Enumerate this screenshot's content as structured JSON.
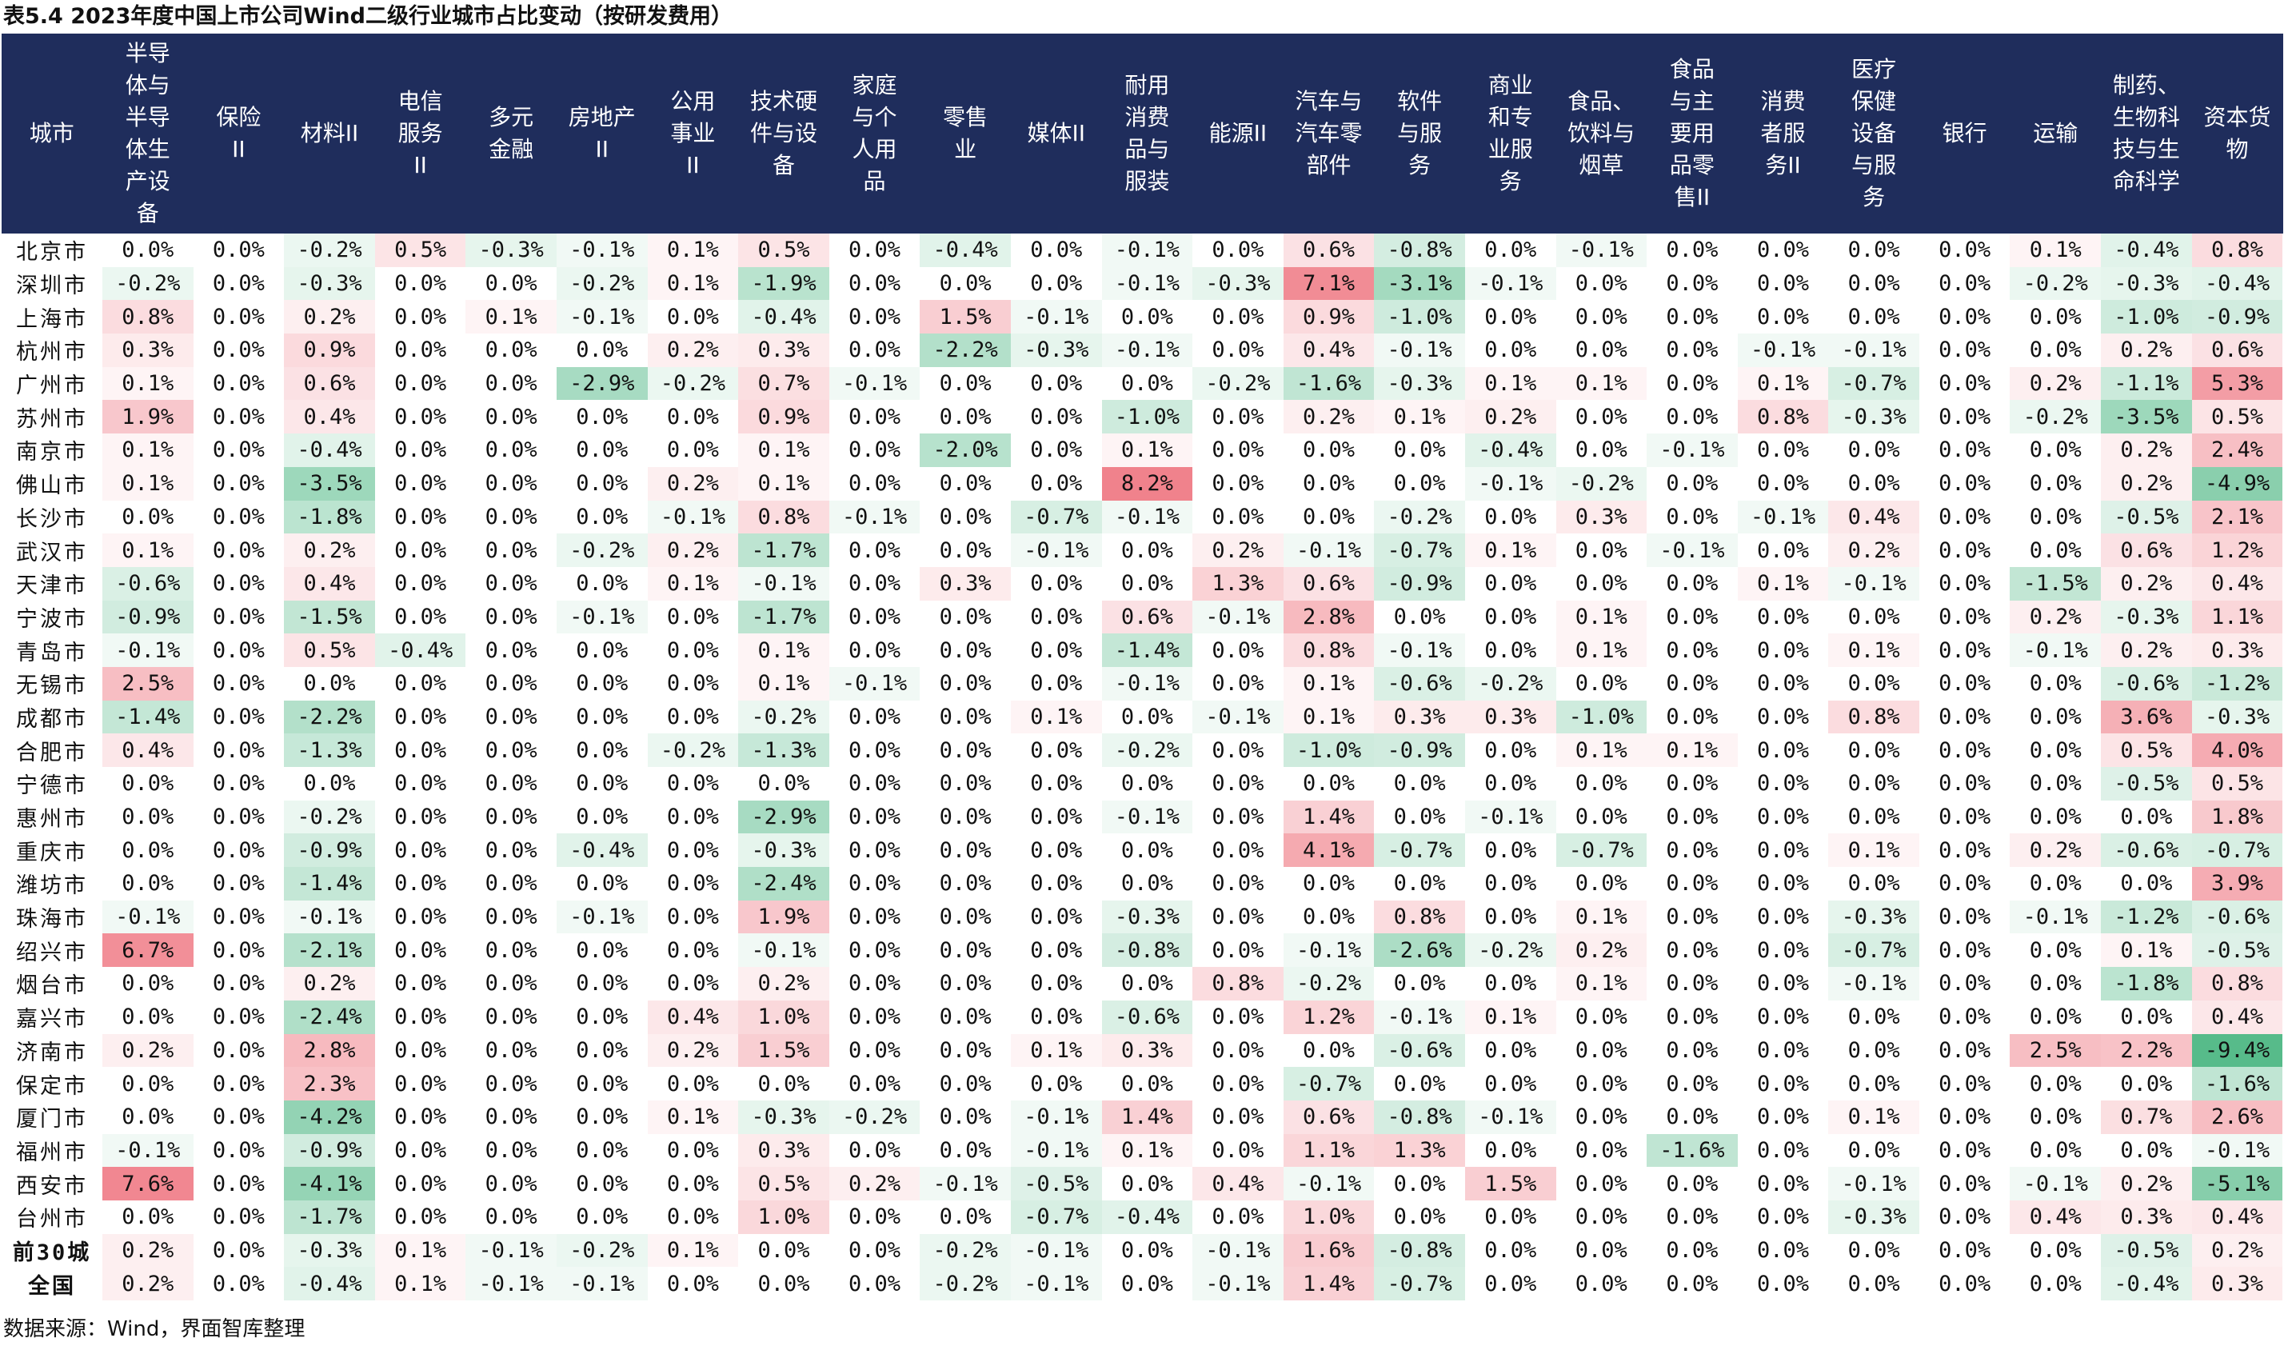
{
  "title": "表5.4 2023年度中国上市公司Wind二级行业城市占比变动（按研发费用）",
  "source": "数据来源：Wind，界面智库整理",
  "colors": {
    "header_bg": "#1f2d5c",
    "header_text": "#ffffff",
    "positive": "#f0828c",
    "negative": "#57bb8a",
    "neutral": "#ffffff"
  },
  "columns": [
    "城市",
    "半导\n体与\n半导\n体生\n产设\n备",
    "保险\nII",
    "材料II",
    "电信\n服务\nII",
    "多元\n金融",
    "房地产\nII",
    "公用\n事业\nII",
    "技术硬\n件与设\n备",
    "家庭\n与个\n人用\n品",
    "零售\n业",
    "媒体II",
    "耐用\n消费\n品与\n服装",
    "能源II",
    "汽车与\n汽车零\n部件",
    "软件\n与服\n务",
    "商业\n和专\n业服\n务",
    "食品、\n饮料与\n烟草",
    "食品\n与主\n要用\n品零\n售II",
    "消费\n者服\n务II",
    "医疗\n保健\n设备\n与服\n务",
    "银行",
    "运输",
    "制药、\n生物科\n技与生\n命科学",
    "资本货\n物"
  ],
  "chart_data": {
    "type": "table",
    "unit": "%",
    "rows": [
      {
        "city": "北京市",
        "values": [
          "0.0%",
          "0.0%",
          "-0.2%",
          "0.5%",
          "-0.3%",
          "-0.1%",
          "0.1%",
          "0.5%",
          "0.0%",
          "-0.4%",
          "0.0%",
          "-0.1%",
          "0.0%",
          "0.6%",
          "-0.8%",
          "0.0%",
          "-0.1%",
          "0.0%",
          "0.0%",
          "0.0%",
          "0.0%",
          "0.1%",
          "-0.4%",
          "0.8%"
        ]
      },
      {
        "city": "深圳市",
        "values": [
          "-0.2%",
          "0.0%",
          "-0.3%",
          "0.0%",
          "0.0%",
          "-0.2%",
          "0.1%",
          "-1.9%",
          "0.0%",
          "0.0%",
          "0.0%",
          "-0.1%",
          "-0.3%",
          "7.1%",
          "-3.1%",
          "-0.1%",
          "0.0%",
          "0.0%",
          "0.0%",
          "0.0%",
          "0.0%",
          "-0.2%",
          "-0.3%",
          "-0.4%"
        ]
      },
      {
        "city": "上海市",
        "values": [
          "0.8%",
          "0.0%",
          "0.2%",
          "0.0%",
          "0.1%",
          "-0.1%",
          "0.0%",
          "-0.4%",
          "0.0%",
          "1.5%",
          "-0.1%",
          "0.0%",
          "0.0%",
          "0.9%",
          "-1.0%",
          "0.0%",
          "0.0%",
          "0.0%",
          "0.0%",
          "0.0%",
          "0.0%",
          "0.0%",
          "-1.0%",
          "-0.9%"
        ]
      },
      {
        "city": "杭州市",
        "values": [
          "0.3%",
          "0.0%",
          "0.9%",
          "0.0%",
          "0.0%",
          "0.0%",
          "0.2%",
          "0.3%",
          "0.0%",
          "-2.2%",
          "-0.3%",
          "-0.1%",
          "0.0%",
          "0.4%",
          "-0.1%",
          "0.0%",
          "0.0%",
          "0.0%",
          "-0.1%",
          "-0.1%",
          "0.0%",
          "0.0%",
          "0.2%",
          "0.6%"
        ]
      },
      {
        "city": "广州市",
        "values": [
          "0.1%",
          "0.0%",
          "0.6%",
          "0.0%",
          "0.0%",
          "-2.9%",
          "-0.2%",
          "0.7%",
          "-0.1%",
          "0.0%",
          "0.0%",
          "0.0%",
          "-0.2%",
          "-1.6%",
          "-0.3%",
          "0.1%",
          "0.1%",
          "0.0%",
          "0.1%",
          "-0.7%",
          "0.0%",
          "0.2%",
          "-1.1%",
          "5.3%"
        ]
      },
      {
        "city": "苏州市",
        "values": [
          "1.9%",
          "0.0%",
          "0.4%",
          "0.0%",
          "0.0%",
          "0.0%",
          "0.0%",
          "0.9%",
          "0.0%",
          "0.0%",
          "0.0%",
          "-1.0%",
          "0.0%",
          "0.2%",
          "0.1%",
          "0.2%",
          "0.0%",
          "0.0%",
          "0.8%",
          "-0.3%",
          "0.0%",
          "-0.2%",
          "-3.5%",
          "0.5%"
        ]
      },
      {
        "city": "南京市",
        "values": [
          "0.1%",
          "0.0%",
          "-0.4%",
          "0.0%",
          "0.0%",
          "0.0%",
          "0.0%",
          "0.1%",
          "0.0%",
          "-2.0%",
          "0.0%",
          "0.1%",
          "0.0%",
          "0.0%",
          "0.0%",
          "-0.4%",
          "0.0%",
          "-0.1%",
          "0.0%",
          "0.0%",
          "0.0%",
          "0.0%",
          "0.2%",
          "2.4%"
        ]
      },
      {
        "city": "佛山市",
        "values": [
          "0.1%",
          "0.0%",
          "-3.5%",
          "0.0%",
          "0.0%",
          "0.0%",
          "0.2%",
          "0.1%",
          "0.0%",
          "0.0%",
          "0.0%",
          "8.2%",
          "0.0%",
          "0.0%",
          "0.0%",
          "-0.1%",
          "-0.2%",
          "0.0%",
          "0.0%",
          "0.0%",
          "0.0%",
          "0.0%",
          "0.2%",
          "-4.9%"
        ]
      },
      {
        "city": "长沙市",
        "values": [
          "0.0%",
          "0.0%",
          "-1.8%",
          "0.0%",
          "0.0%",
          "0.0%",
          "-0.1%",
          "0.8%",
          "-0.1%",
          "0.0%",
          "-0.7%",
          "-0.1%",
          "0.0%",
          "0.0%",
          "-0.2%",
          "0.0%",
          "0.3%",
          "0.0%",
          "-0.1%",
          "0.4%",
          "0.0%",
          "0.0%",
          "-0.5%",
          "2.1%"
        ]
      },
      {
        "city": "武汉市",
        "values": [
          "0.1%",
          "0.0%",
          "0.2%",
          "0.0%",
          "0.0%",
          "-0.2%",
          "0.2%",
          "-1.7%",
          "0.0%",
          "0.0%",
          "-0.1%",
          "0.0%",
          "0.2%",
          "-0.1%",
          "-0.7%",
          "0.1%",
          "0.0%",
          "-0.1%",
          "0.0%",
          "0.2%",
          "0.0%",
          "0.0%",
          "0.6%",
          "1.2%"
        ]
      },
      {
        "city": "天津市",
        "values": [
          "-0.6%",
          "0.0%",
          "0.4%",
          "0.0%",
          "0.0%",
          "0.0%",
          "0.1%",
          "-0.1%",
          "0.0%",
          "0.3%",
          "0.0%",
          "0.0%",
          "1.3%",
          "0.6%",
          "-0.9%",
          "0.0%",
          "0.0%",
          "0.0%",
          "0.1%",
          "-0.1%",
          "0.0%",
          "-1.5%",
          "0.2%",
          "0.4%"
        ]
      },
      {
        "city": "宁波市",
        "values": [
          "-0.9%",
          "0.0%",
          "-1.5%",
          "0.0%",
          "0.0%",
          "-0.1%",
          "0.0%",
          "-1.7%",
          "0.0%",
          "0.0%",
          "0.0%",
          "0.6%",
          "-0.1%",
          "2.8%",
          "0.0%",
          "0.0%",
          "0.1%",
          "0.0%",
          "0.0%",
          "0.0%",
          "0.0%",
          "0.2%",
          "-0.3%",
          "1.1%"
        ]
      },
      {
        "city": "青岛市",
        "values": [
          "-0.1%",
          "0.0%",
          "0.5%",
          "-0.4%",
          "0.0%",
          "0.0%",
          "0.0%",
          "0.1%",
          "0.0%",
          "0.0%",
          "0.0%",
          "-1.4%",
          "0.0%",
          "0.8%",
          "-0.1%",
          "0.0%",
          "0.1%",
          "0.0%",
          "0.0%",
          "0.1%",
          "0.0%",
          "-0.1%",
          "0.2%",
          "0.3%"
        ]
      },
      {
        "city": "无锡市",
        "values": [
          "2.5%",
          "0.0%",
          "0.0%",
          "0.0%",
          "0.0%",
          "0.0%",
          "0.0%",
          "0.1%",
          "-0.1%",
          "0.0%",
          "0.0%",
          "-0.1%",
          "0.0%",
          "0.1%",
          "-0.6%",
          "-0.2%",
          "0.0%",
          "0.0%",
          "0.0%",
          "0.0%",
          "0.0%",
          "0.0%",
          "-0.6%",
          "-1.2%"
        ]
      },
      {
        "city": "成都市",
        "values": [
          "-1.4%",
          "0.0%",
          "-2.2%",
          "0.0%",
          "0.0%",
          "0.0%",
          "0.0%",
          "-0.2%",
          "0.0%",
          "0.0%",
          "0.1%",
          "0.0%",
          "-0.1%",
          "0.1%",
          "0.3%",
          "0.3%",
          "-1.0%",
          "0.0%",
          "0.0%",
          "0.8%",
          "0.0%",
          "0.0%",
          "3.6%",
          "-0.3%"
        ]
      },
      {
        "city": "合肥市",
        "values": [
          "0.4%",
          "0.0%",
          "-1.3%",
          "0.0%",
          "0.0%",
          "0.0%",
          "-0.2%",
          "-1.3%",
          "0.0%",
          "0.0%",
          "0.0%",
          "-0.2%",
          "0.0%",
          "-1.0%",
          "-0.9%",
          "0.0%",
          "0.1%",
          "0.1%",
          "0.0%",
          "0.0%",
          "0.0%",
          "0.0%",
          "0.5%",
          "4.0%"
        ]
      },
      {
        "city": "宁德市",
        "values": [
          "0.0%",
          "0.0%",
          "0.0%",
          "0.0%",
          "0.0%",
          "0.0%",
          "0.0%",
          "0.0%",
          "0.0%",
          "0.0%",
          "0.0%",
          "0.0%",
          "0.0%",
          "0.0%",
          "0.0%",
          "0.0%",
          "0.0%",
          "0.0%",
          "0.0%",
          "0.0%",
          "0.0%",
          "0.0%",
          "-0.5%",
          "0.5%"
        ]
      },
      {
        "city": "惠州市",
        "values": [
          "0.0%",
          "0.0%",
          "-0.2%",
          "0.0%",
          "0.0%",
          "0.0%",
          "0.0%",
          "-2.9%",
          "0.0%",
          "0.0%",
          "0.0%",
          "-0.1%",
          "0.0%",
          "1.4%",
          "0.0%",
          "-0.1%",
          "0.0%",
          "0.0%",
          "0.0%",
          "0.0%",
          "0.0%",
          "0.0%",
          "0.0%",
          "1.8%"
        ]
      },
      {
        "city": "重庆市",
        "values": [
          "0.0%",
          "0.0%",
          "-0.9%",
          "0.0%",
          "0.0%",
          "-0.4%",
          "0.0%",
          "-0.3%",
          "0.0%",
          "0.0%",
          "0.0%",
          "0.0%",
          "0.0%",
          "4.1%",
          "-0.7%",
          "0.0%",
          "-0.7%",
          "0.0%",
          "0.0%",
          "0.1%",
          "0.0%",
          "0.2%",
          "-0.6%",
          "-0.7%"
        ]
      },
      {
        "city": "潍坊市",
        "values": [
          "0.0%",
          "0.0%",
          "-1.4%",
          "0.0%",
          "0.0%",
          "0.0%",
          "0.0%",
          "-2.4%",
          "0.0%",
          "0.0%",
          "0.0%",
          "0.0%",
          "0.0%",
          "0.0%",
          "0.0%",
          "0.0%",
          "0.0%",
          "0.0%",
          "0.0%",
          "0.0%",
          "0.0%",
          "0.0%",
          "0.0%",
          "3.9%"
        ]
      },
      {
        "city": "珠海市",
        "values": [
          "-0.1%",
          "0.0%",
          "-0.1%",
          "0.0%",
          "0.0%",
          "-0.1%",
          "0.0%",
          "1.9%",
          "0.0%",
          "0.0%",
          "0.0%",
          "-0.3%",
          "0.0%",
          "0.0%",
          "0.8%",
          "0.0%",
          "0.1%",
          "0.0%",
          "0.0%",
          "-0.3%",
          "0.0%",
          "-0.1%",
          "-1.2%",
          "-0.6%"
        ]
      },
      {
        "city": "绍兴市",
        "values": [
          "6.7%",
          "0.0%",
          "-2.1%",
          "0.0%",
          "0.0%",
          "0.0%",
          "0.0%",
          "-0.1%",
          "0.0%",
          "0.0%",
          "0.0%",
          "-0.8%",
          "0.0%",
          "-0.1%",
          "-2.6%",
          "-0.2%",
          "0.2%",
          "0.0%",
          "0.0%",
          "-0.7%",
          "0.0%",
          "0.0%",
          "0.1%",
          "-0.5%"
        ]
      },
      {
        "city": "烟台市",
        "values": [
          "0.0%",
          "0.0%",
          "0.2%",
          "0.0%",
          "0.0%",
          "0.0%",
          "0.0%",
          "0.2%",
          "0.0%",
          "0.0%",
          "0.0%",
          "0.0%",
          "0.8%",
          "-0.2%",
          "0.0%",
          "0.0%",
          "0.1%",
          "0.0%",
          "0.0%",
          "-0.1%",
          "0.0%",
          "0.0%",
          "-1.8%",
          "0.8%"
        ]
      },
      {
        "city": "嘉兴市",
        "values": [
          "0.0%",
          "0.0%",
          "-2.4%",
          "0.0%",
          "0.0%",
          "0.0%",
          "0.4%",
          "1.0%",
          "0.0%",
          "0.0%",
          "0.0%",
          "-0.6%",
          "0.0%",
          "1.2%",
          "-0.1%",
          "0.1%",
          "0.0%",
          "0.0%",
          "0.0%",
          "0.0%",
          "0.0%",
          "0.0%",
          "0.0%",
          "0.4%"
        ]
      },
      {
        "city": "济南市",
        "values": [
          "0.2%",
          "0.0%",
          "2.8%",
          "0.0%",
          "0.0%",
          "0.0%",
          "0.2%",
          "1.5%",
          "0.0%",
          "0.0%",
          "0.1%",
          "0.3%",
          "0.0%",
          "0.0%",
          "-0.6%",
          "0.0%",
          "0.0%",
          "0.0%",
          "0.0%",
          "0.0%",
          "0.0%",
          "2.5%",
          "2.2%",
          "-9.4%"
        ]
      },
      {
        "city": "保定市",
        "values": [
          "0.0%",
          "0.0%",
          "2.3%",
          "0.0%",
          "0.0%",
          "0.0%",
          "0.0%",
          "0.0%",
          "0.0%",
          "0.0%",
          "0.0%",
          "0.0%",
          "0.0%",
          "-0.7%",
          "0.0%",
          "0.0%",
          "0.0%",
          "0.0%",
          "0.0%",
          "0.0%",
          "0.0%",
          "0.0%",
          "0.0%",
          "-1.6%"
        ]
      },
      {
        "city": "厦门市",
        "values": [
          "0.0%",
          "0.0%",
          "-4.2%",
          "0.0%",
          "0.0%",
          "0.0%",
          "0.1%",
          "-0.3%",
          "-0.2%",
          "0.0%",
          "-0.1%",
          "1.4%",
          "0.0%",
          "0.6%",
          "-0.8%",
          "-0.1%",
          "0.0%",
          "0.0%",
          "0.0%",
          "0.1%",
          "0.0%",
          "0.0%",
          "0.7%",
          "2.6%"
        ]
      },
      {
        "city": "福州市",
        "values": [
          "-0.1%",
          "0.0%",
          "-0.9%",
          "0.0%",
          "0.0%",
          "0.0%",
          "0.0%",
          "0.3%",
          "0.0%",
          "0.0%",
          "-0.1%",
          "0.1%",
          "0.0%",
          "1.1%",
          "1.3%",
          "0.0%",
          "0.0%",
          "-1.6%",
          "0.0%",
          "0.0%",
          "0.0%",
          "0.0%",
          "0.0%",
          "-0.1%"
        ]
      },
      {
        "city": "西安市",
        "values": [
          "7.6%",
          "0.0%",
          "-4.1%",
          "0.0%",
          "0.0%",
          "0.0%",
          "0.0%",
          "0.5%",
          "0.2%",
          "-0.1%",
          "-0.5%",
          "0.0%",
          "0.4%",
          "-0.1%",
          "0.0%",
          "1.5%",
          "0.0%",
          "0.0%",
          "0.0%",
          "-0.1%",
          "0.0%",
          "-0.1%",
          "0.2%",
          "-5.1%"
        ]
      },
      {
        "city": "台州市",
        "values": [
          "0.0%",
          "0.0%",
          "-1.7%",
          "0.0%",
          "0.0%",
          "0.0%",
          "0.0%",
          "1.0%",
          "0.0%",
          "0.0%",
          "-0.7%",
          "-0.4%",
          "0.0%",
          "1.0%",
          "0.0%",
          "0.0%",
          "0.0%",
          "0.0%",
          "0.0%",
          "-0.3%",
          "0.0%",
          "0.4%",
          "0.3%",
          "0.4%"
        ]
      },
      {
        "city": "前30城",
        "summary": true,
        "values": [
          "0.2%",
          "0.0%",
          "-0.3%",
          "0.1%",
          "-0.1%",
          "-0.2%",
          "0.1%",
          "0.0%",
          "0.0%",
          "-0.2%",
          "-0.1%",
          "0.0%",
          "-0.1%",
          "1.6%",
          "-0.8%",
          "0.0%",
          "0.0%",
          "0.0%",
          "0.0%",
          "0.0%",
          "0.0%",
          "0.0%",
          "-0.5%",
          "0.2%"
        ]
      },
      {
        "city": "全国",
        "summary": true,
        "values": [
          "0.2%",
          "0.0%",
          "-0.4%",
          "0.1%",
          "-0.1%",
          "-0.1%",
          "0.0%",
          "0.0%",
          "0.0%",
          "-0.2%",
          "-0.1%",
          "0.0%",
          "-0.1%",
          "1.4%",
          "-0.7%",
          "0.0%",
          "0.0%",
          "0.0%",
          "0.0%",
          "0.0%",
          "0.0%",
          "0.0%",
          "-0.4%",
          "0.3%"
        ]
      }
    ]
  }
}
